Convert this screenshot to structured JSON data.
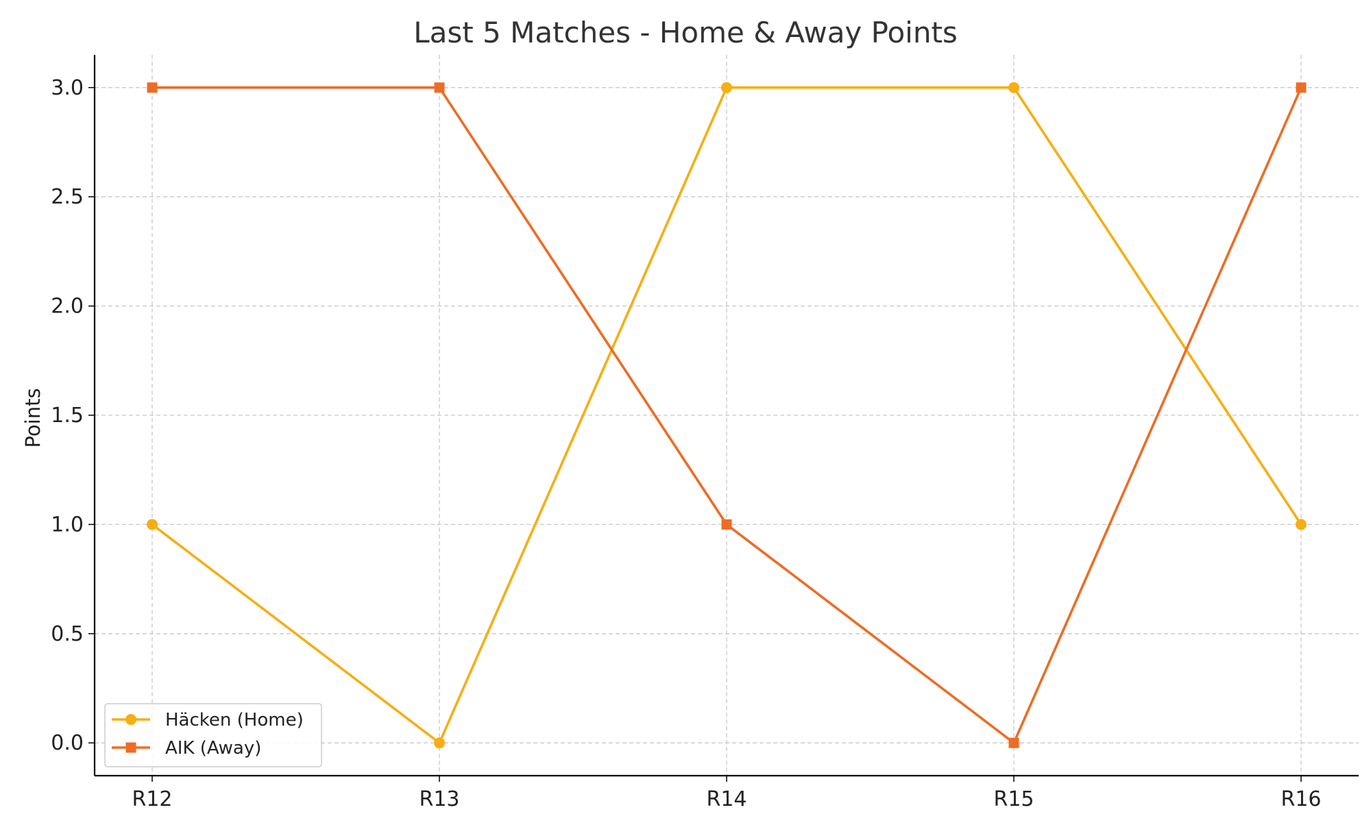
{
  "chart_data": {
    "type": "line",
    "title": "Last 5 Matches - Home & Away Points",
    "xlabel": "",
    "ylabel": "Points",
    "categories": [
      "R12",
      "R13",
      "R14",
      "R15",
      "R16"
    ],
    "ylim": [
      -0.15,
      3.15
    ],
    "yticks": [
      "0.0",
      "0.5",
      "1.0",
      "1.5",
      "2.0",
      "2.5",
      "3.0"
    ],
    "ytick_values": [
      0,
      0.5,
      1.0,
      1.5,
      2.0,
      2.5,
      3.0
    ],
    "grid": true,
    "legend_position": "bottom-left",
    "series": [
      {
        "name": "Häcken (Home)",
        "values": [
          1,
          0,
          3,
          3,
          1
        ],
        "color": "#F6AE13",
        "marker": "circle"
      },
      {
        "name": "AIK (Away)",
        "values": [
          3,
          3,
          1,
          0,
          3
        ],
        "color": "#EE6C24",
        "marker": "square"
      }
    ]
  }
}
